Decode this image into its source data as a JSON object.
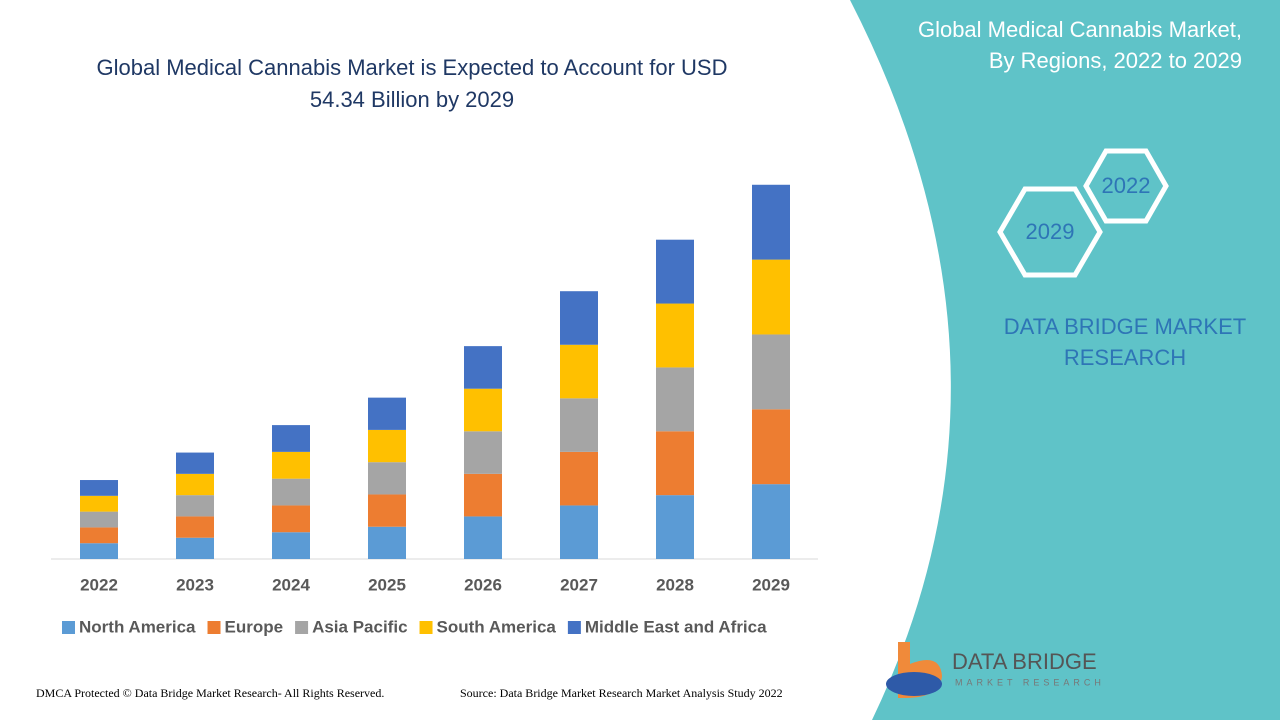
{
  "chart_data": {
    "type": "stacked-bar",
    "title": "Global Medical Cannabis Market is Expected to Account for USD 54.34 Billion by 2029",
    "categories": [
      "2022",
      "2023",
      "2024",
      "2025",
      "2026",
      "2027",
      "2028",
      "2029"
    ],
    "series": [
      {
        "name": "North America",
        "color": "#5b9bd5",
        "values": [
          2.3,
          3.1,
          3.9,
          4.7,
          6.2,
          7.8,
          9.3,
          10.9
        ]
      },
      {
        "name": "Europe",
        "color": "#ed7d31",
        "values": [
          2.3,
          3.1,
          3.9,
          4.7,
          6.2,
          7.8,
          9.3,
          10.9
        ]
      },
      {
        "name": "Asia Pacific",
        "color": "#a5a5a5",
        "values": [
          2.3,
          3.1,
          3.9,
          4.7,
          6.2,
          7.8,
          9.3,
          10.9
        ]
      },
      {
        "name": "South America",
        "color": "#ffc000",
        "values": [
          2.3,
          3.1,
          3.9,
          4.7,
          6.2,
          7.8,
          9.3,
          10.9
        ]
      },
      {
        "name": "Middle East and Africa",
        "color": "#4472c4",
        "values": [
          2.3,
          3.1,
          3.9,
          4.7,
          6.2,
          7.8,
          9.3,
          10.9
        ]
      }
    ],
    "ylim": [
      0,
      60
    ]
  },
  "panel": {
    "title": "Global Medical Cannabis Market, By Regions, 2022 to 2029",
    "hexagons": [
      "2022",
      "2029"
    ],
    "brand": "DATA BRIDGE MARKET RESEARCH"
  },
  "logo": {
    "name": "DATA BRIDGE",
    "tagline": "MARKET RESEARCH"
  },
  "footer": {
    "left": "DMCA Protected © Data Bridge Market Research- All Rights Reserved.",
    "right": "Source: Data Bridge Market Research Market Analysis Study 2022"
  }
}
